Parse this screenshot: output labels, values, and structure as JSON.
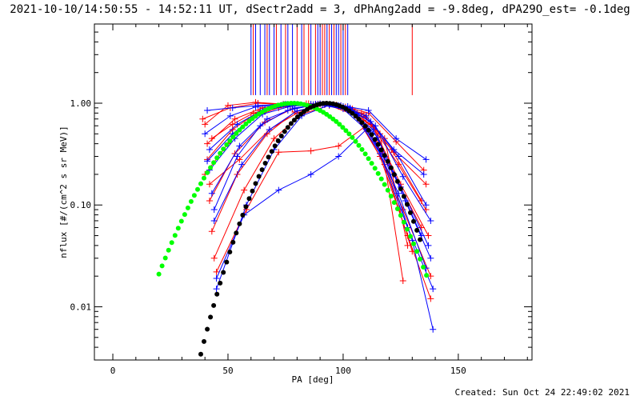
{
  "title": "2021-10-10/14:50:55 - 14:52:11 UT, dSectr2add = 3, dPhAng2add = -9.8deg, dPA29O_est= -0.1deg",
  "footer": "Created: Sun Oct 24 22:49:02 2021",
  "chart_data": {
    "type": "line",
    "title": "2021-10-10/14:50:55 - 14:52:11 UT, dSectr2add = 3, dPhAng2add = -9.8deg, dPA29O_est= -0.1deg",
    "xlabel": "PA [deg]",
    "ylabel": "nflux [#/(cm^2 s sr MeV)]",
    "xlim": [
      -8,
      182
    ],
    "ylim": [
      0.003,
      6
    ],
    "yscale": "log",
    "x_ticks": [
      0,
      50,
      100,
      150
    ],
    "x_tick_labels": [
      "0",
      "50",
      "100",
      "150"
    ],
    "y_ticks": [
      0.01,
      0.1,
      1.0
    ],
    "y_tick_labels": [
      "0.01",
      "0.10",
      "1.00"
    ],
    "colors": {
      "red": "#ff0000",
      "blue": "#0000ff",
      "green": "#00ff00",
      "black": "#000000"
    },
    "vertical_markers": {
      "red": [
        61,
        67,
        71,
        75,
        80,
        83,
        85,
        88,
        91,
        92,
        94,
        96,
        99,
        101,
        130
      ],
      "blue": [
        60,
        62,
        64,
        66,
        68,
        70,
        73,
        76,
        78,
        82,
        86,
        89,
        90,
        93,
        95,
        97,
        98,
        100,
        102
      ],
      "ymin": 1.2,
      "ymax": 6
    },
    "fit_curves": [
      {
        "color": "green",
        "peak_x": 78,
        "width": 29.5,
        "xrange": [
          20,
          137
        ]
      },
      {
        "color": "black",
        "peak_x": 93,
        "width": 23,
        "xrange": [
          27,
          134
        ]
      }
    ],
    "series": [
      {
        "color": "red",
        "x": [
          40,
          50,
          62,
          74,
          86,
          98,
          110,
          122,
          136
        ],
        "y": [
          0.62,
          0.95,
          1.02,
          0.98,
          0.96,
          0.93,
          0.72,
          0.33,
          0.16
        ]
      },
      {
        "color": "red",
        "x": [
          41,
          52,
          64,
          77,
          89,
          101,
          113,
          125,
          137
        ],
        "y": [
          0.28,
          0.55,
          0.85,
          0.95,
          0.98,
          0.92,
          0.58,
          0.16,
          0.05
        ]
      },
      {
        "color": "red",
        "x": [
          42,
          53,
          66,
          78,
          90,
          102,
          114,
          126,
          138
        ],
        "y": [
          0.11,
          0.32,
          0.65,
          0.88,
          0.98,
          0.9,
          0.42,
          0.09,
          0.02
        ]
      },
      {
        "color": "red",
        "x": [
          43,
          54,
          67,
          79,
          92,
          104,
          116,
          128,
          138
        ],
        "y": [
          0.055,
          0.2,
          0.5,
          0.82,
          0.97,
          0.86,
          0.3,
          0.05,
          0.012
        ]
      },
      {
        "color": "red",
        "x": [
          39,
          51,
          63,
          75,
          87,
          99,
          111,
          123,
          135
        ],
        "y": [
          0.7,
          0.9,
          1.0,
          0.97,
          0.97,
          0.95,
          0.8,
          0.42,
          0.22
        ]
      },
      {
        "color": "red",
        "x": [
          41,
          53,
          65,
          76,
          88,
          100,
          112,
          124,
          136
        ],
        "y": [
          0.4,
          0.7,
          0.9,
          0.96,
          0.98,
          0.9,
          0.62,
          0.25,
          0.09
        ]
      },
      {
        "color": "red",
        "x": [
          44,
          57,
          70,
          82,
          94,
          106,
          118,
          130
        ],
        "y": [
          0.03,
          0.14,
          0.45,
          0.78,
          0.95,
          0.75,
          0.25,
          0.035
        ]
      },
      {
        "color": "red",
        "x": [
          45,
          58,
          72,
          86,
          98,
          110,
          122,
          134
        ],
        "y": [
          0.022,
          0.09,
          0.33,
          0.34,
          0.38,
          0.6,
          0.2,
          0.06
        ]
      },
      {
        "color": "red",
        "x": [
          40,
          50,
          60,
          72,
          84,
          96,
          108,
          118,
          128
        ],
        "y": [
          0.2,
          0.4,
          0.72,
          0.9,
          0.99,
          0.97,
          0.8,
          0.45,
          0.04
        ]
      },
      {
        "color": "red",
        "x": [
          42,
          55,
          68,
          80,
          92,
          104,
          116,
          126
        ],
        "y": [
          0.16,
          0.28,
          0.55,
          0.8,
          0.97,
          0.88,
          0.5,
          0.018
        ]
      },
      {
        "color": "red",
        "x": [
          43,
          52,
          61,
          72,
          85,
          97,
          109,
          121,
          134
        ],
        "y": [
          0.45,
          0.62,
          0.8,
          0.93,
          0.99,
          0.96,
          0.77,
          0.35,
          0.11
        ]
      },
      {
        "color": "blue",
        "x": [
          41,
          52,
          63,
          75,
          87,
          99,
          111,
          123,
          136
        ],
        "y": [
          0.85,
          0.9,
          0.95,
          0.98,
          0.97,
          0.95,
          0.85,
          0.45,
          0.28
        ]
      },
      {
        "color": "blue",
        "x": [
          42,
          54,
          66,
          78,
          90,
          102,
          114,
          126,
          138
        ],
        "y": [
          0.35,
          0.62,
          0.88,
          0.97,
          0.99,
          0.93,
          0.6,
          0.19,
          0.07
        ]
      },
      {
        "color": "blue",
        "x": [
          43,
          55,
          67,
          79,
          91,
          103,
          115,
          127,
          138
        ],
        "y": [
          0.13,
          0.38,
          0.7,
          0.9,
          0.98,
          0.9,
          0.46,
          0.11,
          0.03
        ]
      },
      {
        "color": "blue",
        "x": [
          44,
          56,
          68,
          80,
          92,
          104,
          116,
          128,
          139
        ],
        "y": [
          0.07,
          0.25,
          0.55,
          0.84,
          0.97,
          0.85,
          0.32,
          0.06,
          0.015
        ]
      },
      {
        "color": "blue",
        "x": [
          45,
          57,
          72,
          86,
          98,
          110,
          122,
          134
        ],
        "y": [
          0.019,
          0.08,
          0.14,
          0.2,
          0.3,
          0.55,
          0.2,
          0.05
        ]
      },
      {
        "color": "blue",
        "x": [
          40,
          51,
          62,
          74,
          86,
          98,
          110,
          122,
          135
        ],
        "y": [
          0.5,
          0.75,
          0.92,
          0.97,
          0.98,
          0.95,
          0.75,
          0.35,
          0.2
        ]
      },
      {
        "color": "blue",
        "x": [
          42,
          53,
          65,
          77,
          89,
          101,
          113,
          125,
          137
        ],
        "y": [
          0.22,
          0.45,
          0.78,
          0.93,
          0.98,
          0.9,
          0.55,
          0.15,
          0.04
        ]
      },
      {
        "color": "blue",
        "x": [
          45,
          58,
          70,
          82,
          94,
          106,
          118,
          130,
          139
        ],
        "y": [
          0.015,
          0.1,
          0.35,
          0.75,
          0.96,
          0.8,
          0.3,
          0.045,
          0.006
        ]
      },
      {
        "color": "blue",
        "x": [
          41,
          52,
          64,
          76,
          88,
          100,
          112,
          124,
          136
        ],
        "y": [
          0.27,
          0.5,
          0.82,
          0.95,
          0.98,
          0.88,
          0.5,
          0.13,
          0.024
        ]
      },
      {
        "color": "blue",
        "x": [
          44,
          54,
          64,
          76,
          88,
          100,
          112,
          124,
          136
        ],
        "y": [
          0.09,
          0.3,
          0.6,
          0.85,
          0.97,
          0.93,
          0.66,
          0.3,
          0.1
        ]
      }
    ]
  }
}
